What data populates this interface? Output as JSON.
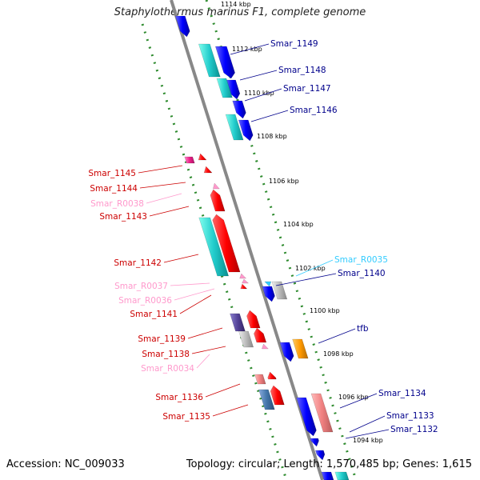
{
  "title": "Staphylothermus marinus F1, complete genome",
  "footer": {
    "accession": "Accession: NC_009033",
    "summary": "Topology: circular; Length: 1,570,485 bp; Genes: 1,615"
  },
  "colors": {
    "forward_cds": "#ff0000",
    "reverse_cds": "#0000ff",
    "forward_rna": "#ff99cc",
    "reverse_rna": "#33ccff",
    "backbone": "#888888",
    "ruler_dots": "#2e8b2e"
  },
  "ticks": [
    "1114 kbp",
    "1112 kbp",
    "1110 kbp",
    "1108 kbp",
    "1106 kbp",
    "1104 kbp",
    "1102 kbp",
    "1100 kbp",
    "1098 kbp",
    "1096 kbp",
    "1094 kbp"
  ],
  "right_labels": [
    {
      "text": "Smar_1149",
      "color": "#00008b"
    },
    {
      "text": "Smar_1148",
      "color": "#00008b"
    },
    {
      "text": "Smar_1147",
      "color": "#00008b"
    },
    {
      "text": "Smar_1146",
      "color": "#00008b"
    },
    {
      "text": "Smar_R0035",
      "color": "#33ccff"
    },
    {
      "text": "Smar_1140",
      "color": "#00008b"
    },
    {
      "text": "tfb",
      "color": "#00008b"
    },
    {
      "text": "Smar_1134",
      "color": "#00008b"
    },
    {
      "text": "Smar_1133",
      "color": "#00008b"
    },
    {
      "text": "Smar_1132",
      "color": "#00008b"
    }
  ],
  "left_labels": [
    {
      "text": "Smar_1145",
      "color": "#cc0000"
    },
    {
      "text": "Smar_1144",
      "color": "#cc0000"
    },
    {
      "text": "Smar_R0038",
      "color": "#ff99cc"
    },
    {
      "text": "Smar_1143",
      "color": "#cc0000"
    },
    {
      "text": "Smar_1142",
      "color": "#cc0000"
    },
    {
      "text": "Smar_R0037",
      "color": "#ff99cc"
    },
    {
      "text": "Smar_R0036",
      "color": "#ff99cc"
    },
    {
      "text": "Smar_1141",
      "color": "#cc0000"
    },
    {
      "text": "Smar_1139",
      "color": "#cc0000"
    },
    {
      "text": "Smar_1138",
      "color": "#cc0000"
    },
    {
      "text": "Smar_R0034",
      "color": "#ff99cc"
    },
    {
      "text": "Smar_1136",
      "color": "#cc0000"
    },
    {
      "text": "Smar_1135",
      "color": "#cc0000"
    }
  ]
}
